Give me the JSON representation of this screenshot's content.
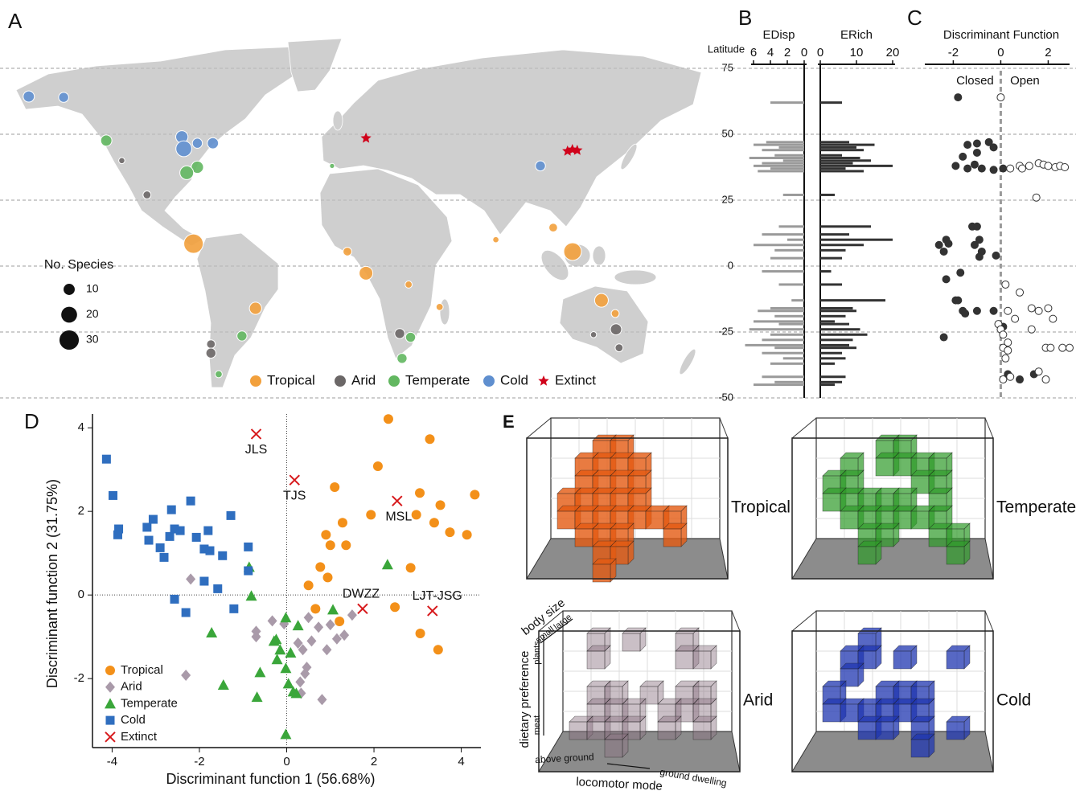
{
  "map": {
    "panel": "A",
    "size_legend": {
      "title": "No. Species",
      "values": [
        10,
        20,
        30
      ]
    },
    "groups": [
      {
        "name": "Tropical",
        "color": "#f2a03c"
      },
      {
        "name": "Arid",
        "color": "#6b6767"
      },
      {
        "name": "Temperate",
        "color": "#62b760"
      },
      {
        "name": "Cold",
        "color": "#5f8fcf"
      },
      {
        "name": "Extinct",
        "color": "#d0021b"
      }
    ],
    "sites": [
      {
        "group": "Cold",
        "lon": -164,
        "lat": 64.3,
        "n": 10
      },
      {
        "group": "Cold",
        "lon": -146,
        "lat": 64,
        "n": 8
      },
      {
        "group": "Temperate",
        "lon": -124,
        "lat": 47.6,
        "n": 10
      },
      {
        "group": "Arid",
        "lon": -116,
        "lat": 40,
        "n": 3
      },
      {
        "group": "Arid",
        "lon": -103,
        "lat": 27,
        "n": 5
      },
      {
        "group": "Cold",
        "lon": -85,
        "lat": 49,
        "n": 12
      },
      {
        "group": "Cold",
        "lon": -84,
        "lat": 44.5,
        "n": 20
      },
      {
        "group": "Cold",
        "lon": -77,
        "lat": 46.6,
        "n": 8
      },
      {
        "group": "Cold",
        "lon": -69,
        "lat": 46.6,
        "n": 10
      },
      {
        "group": "Temperate",
        "lon": -77,
        "lat": 37.5,
        "n": 12
      },
      {
        "group": "Temperate",
        "lon": -82.5,
        "lat": 35.4,
        "n": 15
      },
      {
        "group": "Tropical",
        "lon": -79,
        "lat": 8.5,
        "n": 30
      },
      {
        "group": "Tropical",
        "lon": -47,
        "lat": -16,
        "n": 12
      },
      {
        "group": "Arid",
        "lon": -70,
        "lat": -29.6,
        "n": 6
      },
      {
        "group": "Arid",
        "lon": -70,
        "lat": -33,
        "n": 8
      },
      {
        "group": "Temperate",
        "lon": -54,
        "lat": -26.5,
        "n": 8
      },
      {
        "group": "Temperate",
        "lon": -66,
        "lat": -41,
        "n": 4
      },
      {
        "group": "Temperate",
        "lon": -7.5,
        "lat": 38,
        "n": 2
      },
      {
        "group": "Extinct",
        "lon": 10,
        "lat": 48.5
      },
      {
        "group": "Tropical",
        "lon": 0.4,
        "lat": 5.5,
        "n": 6
      },
      {
        "group": "Tropical",
        "lon": 10,
        "lat": -2.7,
        "n": 15
      },
      {
        "group": "Tropical",
        "lon": 32,
        "lat": -7,
        "n": 4
      },
      {
        "group": "Tropical",
        "lon": 48,
        "lat": -15.5,
        "n": 4
      },
      {
        "group": "Arid",
        "lon": 27.4,
        "lat": -25.6,
        "n": 8
      },
      {
        "group": "Temperate",
        "lon": 33,
        "lat": -27,
        "n": 8
      },
      {
        "group": "Temperate",
        "lon": 28.6,
        "lat": -35,
        "n": 8
      },
      {
        "group": "Tropical",
        "lon": 77,
        "lat": 10,
        "n": 3
      },
      {
        "group": "Cold",
        "lon": 100,
        "lat": 38,
        "n": 8
      },
      {
        "group": "Extinct",
        "lon": 114,
        "lat": 43.6
      },
      {
        "group": "Extinct",
        "lon": 116.5,
        "lat": 44.2
      },
      {
        "group": "Extinct",
        "lon": 119,
        "lat": 43.9
      },
      {
        "group": "Tropical",
        "lon": 106.6,
        "lat": 14.6,
        "n": 6
      },
      {
        "group": "Tropical",
        "lon": 116.6,
        "lat": 5.5,
        "n": 25
      },
      {
        "group": "Tropical",
        "lon": 131.5,
        "lat": -13,
        "n": 15
      },
      {
        "group": "Tropical",
        "lon": 138.6,
        "lat": -18,
        "n": 5
      },
      {
        "group": "Arid",
        "lon": 139,
        "lat": -24,
        "n": 10
      },
      {
        "group": "Arid",
        "lon": 140.6,
        "lat": -31,
        "n": 5
      },
      {
        "group": "Arid",
        "lon": 127.4,
        "lat": -26,
        "n": 3
      }
    ]
  },
  "chart_data": [
    {
      "type": "hbar",
      "panel": "B",
      "ylabel": "Latitude",
      "ylim": [
        -50,
        75
      ],
      "yticks": [
        75,
        50,
        25,
        0,
        -25,
        -50
      ],
      "grid": true,
      "y": [
        62,
        47,
        46,
        45,
        44,
        42,
        41,
        40,
        39,
        38,
        37,
        36,
        27,
        15,
        12,
        10,
        8,
        6,
        3,
        -2,
        -7,
        -13,
        -16,
        -17,
        -19,
        -21,
        -22,
        -24,
        -26,
        -28,
        -30,
        -31,
        -33,
        -35,
        -37,
        -42,
        -44,
        -45
      ],
      "series": [
        {
          "name": "EDisp",
          "color": "#9a9a9a",
          "xlim": [
            0,
            6
          ],
          "xticks": [
            6,
            4,
            2,
            0
          ],
          "reverse": true,
          "values": [
            4,
            4.5,
            6,
            3,
            5,
            3.5,
            6.5,
            2.5,
            5,
            6,
            4,
            5.5,
            2.5,
            3,
            5,
            2,
            6,
            3.5,
            4,
            5,
            3,
            1.5,
            4,
            5.5,
            3.5,
            6,
            3,
            6.5,
            4,
            5,
            7,
            3.5,
            5,
            2.5,
            4,
            5,
            3.5,
            6
          ]
        },
        {
          "name": "ERich",
          "color": "#333333",
          "xlim": [
            0,
            20
          ],
          "xticks": [
            0,
            10,
            20
          ],
          "values": [
            6,
            8,
            15,
            10,
            12,
            6,
            11,
            14,
            9,
            20,
            7,
            12,
            4,
            14,
            8,
            20,
            12,
            7,
            6,
            3,
            6,
            18,
            9,
            10,
            7,
            4,
            8,
            11,
            13,
            9,
            8,
            10,
            6,
            7,
            4,
            7,
            6,
            4
          ]
        }
      ]
    },
    {
      "type": "scatter",
      "panel": "C",
      "title": "Discriminant Function",
      "xlim": [
        -3.2,
        2.9
      ],
      "xticks": [
        -2,
        0,
        2
      ],
      "ylim": [
        -50,
        75
      ],
      "zero_line": true,
      "series": [
        {
          "name": "Closed",
          "color": "#333333",
          "filled": true,
          "x": [
            -1.8,
            -1.4,
            -1,
            -0.5,
            -0.3,
            -1,
            -1.6,
            -1.9,
            -1.4,
            -0.8,
            -0.3,
            -1.1,
            0.1,
            -1.2,
            -1,
            -2.3,
            -2.6,
            -2.2,
            -1.1,
            -0.8,
            -0.9,
            -2.4,
            -0.9,
            -0.2,
            -1.7,
            -2.3,
            -1.8,
            -1.6,
            -1.5,
            -1,
            -0.3,
            -2.4,
            0.1,
            0.3,
            0.8,
            1.4,
            -1.9
          ],
          "y": [
            64,
            46,
            46.5,
            47,
            45,
            43,
            41.5,
            38,
            37,
            37,
            36.5,
            38.5,
            37,
            15,
            15,
            10,
            8,
            8.5,
            8,
            5.5,
            3.5,
            5.5,
            10,
            4,
            -2.5,
            -5,
            -13,
            -17,
            -18,
            -17,
            -17,
            -27,
            -23,
            -41,
            -43,
            -41,
            -13
          ]
        },
        {
          "name": "Open",
          "color": "#333333",
          "filled": false,
          "x": [
            0,
            1.5,
            0.8,
            1.2,
            1.6,
            1.8,
            2,
            2.3,
            2.5,
            2.7,
            0.4,
            0.9,
            0.2,
            0.8,
            0.3,
            0.6,
            1.3,
            1.6,
            2,
            2.2,
            -0.1,
            0,
            0.1,
            0.3,
            0.1,
            0.3,
            1.3,
            2.6,
            1.9,
            2.1,
            2.9,
            0.2,
            0.4,
            1.6,
            1.9,
            0.1
          ],
          "y": [
            64,
            26,
            38,
            38,
            39,
            38.5,
            38,
            37.5,
            38,
            37.5,
            37,
            37,
            -7,
            -10,
            -17,
            -20,
            -16,
            -17,
            -16,
            -20,
            -22,
            -24,
            -26,
            -29,
            -31,
            -32,
            -24,
            -31,
            -31,
            -31,
            -31,
            -35,
            -42,
            -40,
            -43,
            -43
          ]
        }
      ]
    },
    {
      "type": "scatter",
      "panel": "D",
      "xlabel": "Discriminant function 1 (56.68%)",
      "ylabel": "Discriminant function 2 (31.75%)",
      "xlim": [
        -4.45,
        4.45
      ],
      "xticks": [
        -4,
        -2,
        0,
        2,
        4
      ],
      "ylim": [
        -3.65,
        4.33
      ],
      "yticks": [
        -2,
        0,
        2,
        4
      ],
      "zero_line": true,
      "series": [
        {
          "name": "Tropical",
          "color": "#f39019",
          "marker": "circle",
          "x": [
            2.33,
            3.28,
            2.09,
            1.1,
            3.05,
            3.52,
            1.93,
            2.97,
            4.31,
            3.38,
            3.74,
            4.13,
            0.9,
            1,
            1.36,
            0.77,
            0.94,
            2.84,
            0.5,
            0.66,
            1.21,
            2.48,
            3.06,
            3.47,
            1.28
          ],
          "y": [
            4.21,
            3.73,
            3.08,
            2.58,
            2.44,
            2.15,
            1.92,
            1.92,
            2.4,
            1.73,
            1.5,
            1.44,
            1.44,
            1.19,
            1.19,
            0.67,
            0.42,
            0.65,
            0.23,
            -0.33,
            -0.63,
            -0.29,
            -0.92,
            -1.31,
            1.73
          ]
        },
        {
          "name": "Arid",
          "color": "#a99aa9",
          "marker": "diamond",
          "x": [
            -2.2,
            -2.31,
            -0.33,
            -0.7,
            -0.7,
            -0.06,
            0.5,
            0.73,
            1,
            1.5,
            1.32,
            0.26,
            0.57,
            0.92,
            0.46,
            0.42,
            0.31,
            0.33,
            0.81,
            0.37,
            1.15
          ],
          "y": [
            0.38,
            -1.92,
            -0.62,
            -0.87,
            -1,
            -0.69,
            -0.54,
            -0.77,
            -0.71,
            -0.48,
            -0.96,
            -1.15,
            -1.1,
            -1.31,
            -1.73,
            -1.88,
            -2.08,
            -2.35,
            -2.5,
            -1.31,
            -1.05
          ]
        },
        {
          "name": "Temperate",
          "color": "#3aa63a",
          "marker": "triangle",
          "x": [
            2.31,
            -0.86,
            -0.81,
            1.06,
            -0.02,
            0.26,
            -1.72,
            -0.29,
            -0.15,
            0.09,
            -0.22,
            -0.61,
            -0.02,
            0.04,
            0.15,
            0.22,
            -1.45,
            -0.68,
            -0.02,
            -0.24
          ],
          "y": [
            0.73,
            0.67,
            -0.02,
            -0.35,
            -0.54,
            -0.73,
            -0.9,
            -1.1,
            -1.31,
            -1.38,
            -1.54,
            -1.85,
            -1.75,
            -2.12,
            -2.31,
            -2.35,
            -2.15,
            -2.44,
            -3.33,
            -1.06
          ]
        },
        {
          "name": "Cold",
          "color": "#2f6ebf",
          "marker": "square",
          "x": [
            -4.13,
            -3.98,
            -3.85,
            -3.87,
            -3.2,
            -3.06,
            -2.64,
            -2.2,
            -1.28,
            -1.8,
            -2.07,
            -2.44,
            -2.68,
            -2.57,
            -3.16,
            -2.9,
            -2.81,
            -1.89,
            -1.76,
            -1.47,
            -0.88,
            -1.89,
            -1.58,
            -0.88,
            -2.57,
            -2.31,
            -1.21
          ],
          "y": [
            3.25,
            2.38,
            1.58,
            1.44,
            1.62,
            1.81,
            2.04,
            2.25,
            1.9,
            1.54,
            1.38,
            1.54,
            1.4,
            1.58,
            1.31,
            1.13,
            0.9,
            1.1,
            1.06,
            0.94,
            1.15,
            0.33,
            0.15,
            0.58,
            -0.1,
            -0.42,
            -0.33
          ]
        },
        {
          "name": "Extinct",
          "color": "#d7191c",
          "marker": "cross",
          "x": [
            -0.7,
            0.18,
            2.53,
            1.74,
            3.34
          ],
          "y": [
            3.85,
            2.75,
            2.25,
            -0.33,
            -0.38
          ],
          "labels": [
            "JLS",
            "TJS",
            "MSL",
            "DWZZ",
            "LJT-JSG"
          ]
        }
      ]
    }
  ],
  "voxels": {
    "panel": "E",
    "boxes": [
      {
        "name": "Tropical",
        "color": "#e35a12"
      },
      {
        "name": "Temperate",
        "color": "#2e9a28"
      },
      {
        "name": "Arid",
        "color": "#8a7280"
      },
      {
        "name": "Cold",
        "color": "#1f36b0"
      }
    ],
    "axes": {
      "body": "body size",
      "small": "small",
      "large": "large",
      "diet": "dietary preference",
      "plants": "plants",
      "meat": "meat",
      "above": "above ground",
      "ground": "ground dwelling",
      "locomotor": "locomotor mode"
    }
  }
}
